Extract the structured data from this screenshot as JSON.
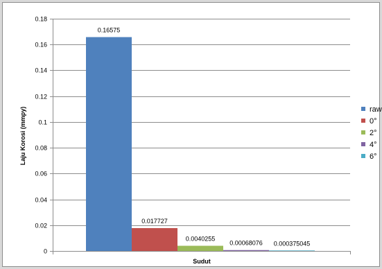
{
  "chart_data": {
    "type": "bar",
    "title": "",
    "xlabel": "Sudut",
    "ylabel": "Laju Korosi (mmpy)",
    "ylim": [
      0,
      0.18
    ],
    "yticks": [
      0,
      0.02,
      0.04,
      0.06,
      0.08,
      0.1,
      0.12,
      0.14,
      0.16,
      0.18
    ],
    "ytick_labels": [
      "0",
      "0.02",
      "0.04",
      "0.06",
      "0.08",
      "0.1",
      "0.12",
      "0.14",
      "0.16",
      "0.18"
    ],
    "grid": true,
    "legend_position": "right",
    "series": [
      {
        "name": "raw",
        "value": 0.16575,
        "label": "0.16575",
        "color": "#4f81bd"
      },
      {
        "name": "0°",
        "value": 0.017727,
        "label": "0.017727",
        "color": "#c0504d"
      },
      {
        "name": "2°",
        "value": 0.0040255,
        "label": "0.0040255",
        "color": "#9bbb59"
      },
      {
        "name": "4°",
        "value": 0.00068076,
        "label": "0.00068076",
        "color": "#8064a2"
      },
      {
        "name": "6°",
        "value": 0.000375045,
        "label": "0.000375045",
        "color": "#4bacc6"
      }
    ]
  }
}
